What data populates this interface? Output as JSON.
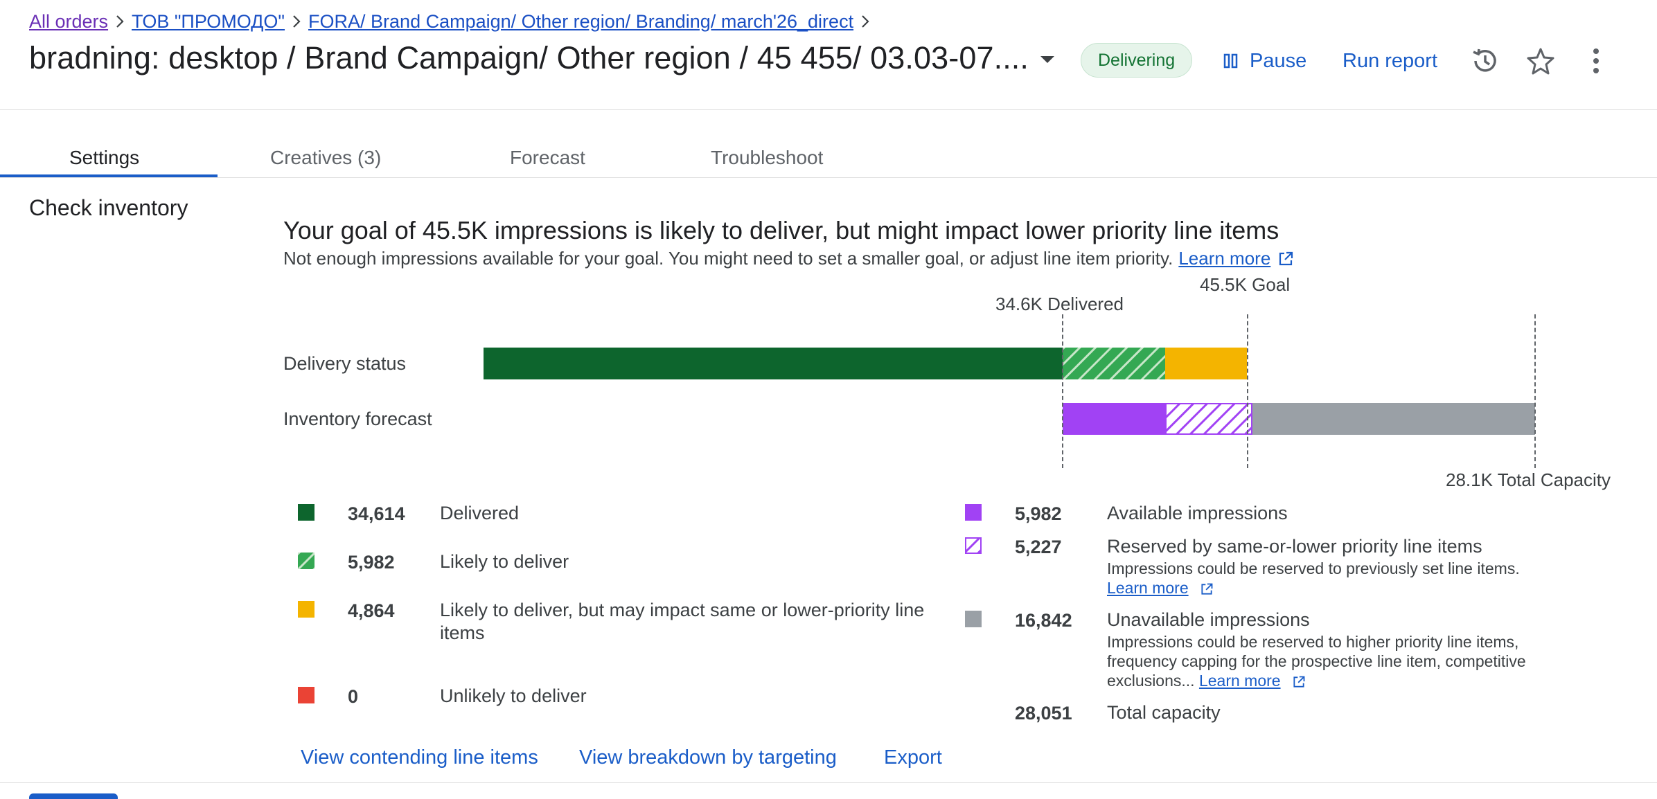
{
  "breadcrumb": {
    "all_orders": "All orders",
    "order": "ТОВ \"ПРОМОДО\"",
    "campaign": "FORA/ Brand Campaign/ Other region/ Branding/ march'26_direct"
  },
  "header": {
    "title": "bradning: desktop / Brand Campaign/ Other region / 45 455/ 03.03-07....",
    "status": "Delivering",
    "pause_label": "Pause",
    "run_report_label": "Run report"
  },
  "tabs": [
    {
      "label": "Settings",
      "active": true
    },
    {
      "label": "Creatives (3)",
      "active": false
    },
    {
      "label": "Forecast",
      "active": false
    },
    {
      "label": "Troubleshoot",
      "active": false
    }
  ],
  "section": {
    "title": "Check inventory",
    "heading": "Your goal of 45.5K impressions is likely to deliver, but might impact lower priority line items",
    "subtext": "Not enough impressions available for your goal. You might need to set a smaller goal, or adjust line item priority.",
    "learn_more": "Learn more"
  },
  "chart": {
    "delivered_marker": "34.6K Delivered",
    "goal_marker": "45.5K Goal",
    "capacity_marker": "28.1K Total Capacity",
    "row_delivery": "Delivery status",
    "row_inventory": "Inventory forecast"
  },
  "legend_left": [
    {
      "value": "34,614",
      "label": "Delivered",
      "color": "#0d652d",
      "pattern": "solid"
    },
    {
      "value": "5,982",
      "label": "Likely to deliver",
      "color": "#34a853",
      "pattern": "hatched"
    },
    {
      "value": "4,864",
      "label": "Likely to deliver, but may impact same or lower-priority line items",
      "color": "#f4b400",
      "pattern": "solid"
    },
    {
      "value": "0",
      "label": "Unlikely to deliver",
      "color": "#ea4335",
      "pattern": "solid"
    }
  ],
  "legend_right": [
    {
      "value": "5,982",
      "label": "Available impressions",
      "color": "#a142f4",
      "pattern": "solid"
    },
    {
      "value": "5,227",
      "label": "Reserved by same-or-lower priority line items",
      "note": "Impressions could be reserved to previously set line items.",
      "link": "Learn more",
      "color": "#a142f4",
      "pattern": "hatched"
    },
    {
      "value": "16,842",
      "label": "Unavailable impressions",
      "note": "Impressions could be reserved to higher priority line items, frequency capping for the prospective line item, competitive exclusions...",
      "link": "Learn more",
      "color": "#9aa0a6",
      "pattern": "solid"
    },
    {
      "value": "28,051",
      "label": "Total capacity"
    }
  ],
  "actions": {
    "contending": "View contending line items",
    "breakdown": "View breakdown by targeting",
    "export": "Export"
  },
  "colors": {
    "delivered": "#0d652d",
    "likely": "#34a853",
    "impact": "#f4b400",
    "unlikely": "#ea4335",
    "available": "#a142f4",
    "unavailable": "#9aa0a6",
    "accent": "#1a5dc8"
  }
}
